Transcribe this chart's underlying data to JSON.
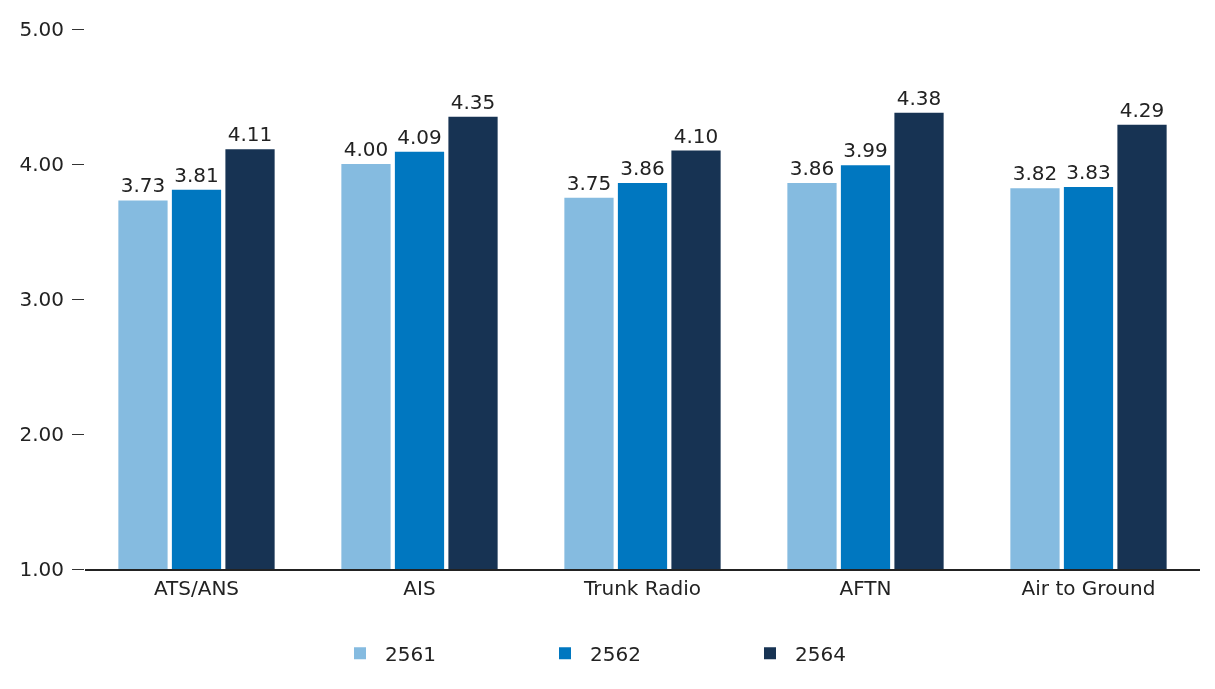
{
  "chart_data": {
    "type": "bar",
    "categories": [
      "ATS/ANS",
      "AIS",
      "Trunk Radio",
      "AFTN",
      "Air to Ground"
    ],
    "series": [
      {
        "name": "2561",
        "color": "#85bbe0",
        "values": [
          3.73,
          4.0,
          3.75,
          3.86,
          3.82
        ],
        "value_labels": [
          "3.73",
          "4.00",
          "3.75",
          "3.86",
          "3.82"
        ]
      },
      {
        "name": "2562",
        "color": "#0077c0",
        "values": [
          3.81,
          4.09,
          3.86,
          3.99,
          3.83
        ],
        "value_labels": [
          "3.81",
          "4.09",
          "3.86",
          "3.99",
          "3.83"
        ]
      },
      {
        "name": "2564",
        "color": "#173353",
        "values": [
          4.11,
          4.35,
          4.1,
          4.38,
          4.29
        ],
        "value_labels": [
          "4.11",
          "4.35",
          "4.10",
          "4.38",
          "4.29"
        ]
      }
    ],
    "ylim": [
      1,
      5
    ],
    "yticks": [
      {
        "value": 1,
        "label": "1.00"
      },
      {
        "value": 2,
        "label": "2.00"
      },
      {
        "value": 3,
        "label": "3.00"
      },
      {
        "value": 4,
        "label": "4.00"
      },
      {
        "value": 5,
        "label": "5.00"
      }
    ],
    "grid": false,
    "legend": "bottom"
  }
}
